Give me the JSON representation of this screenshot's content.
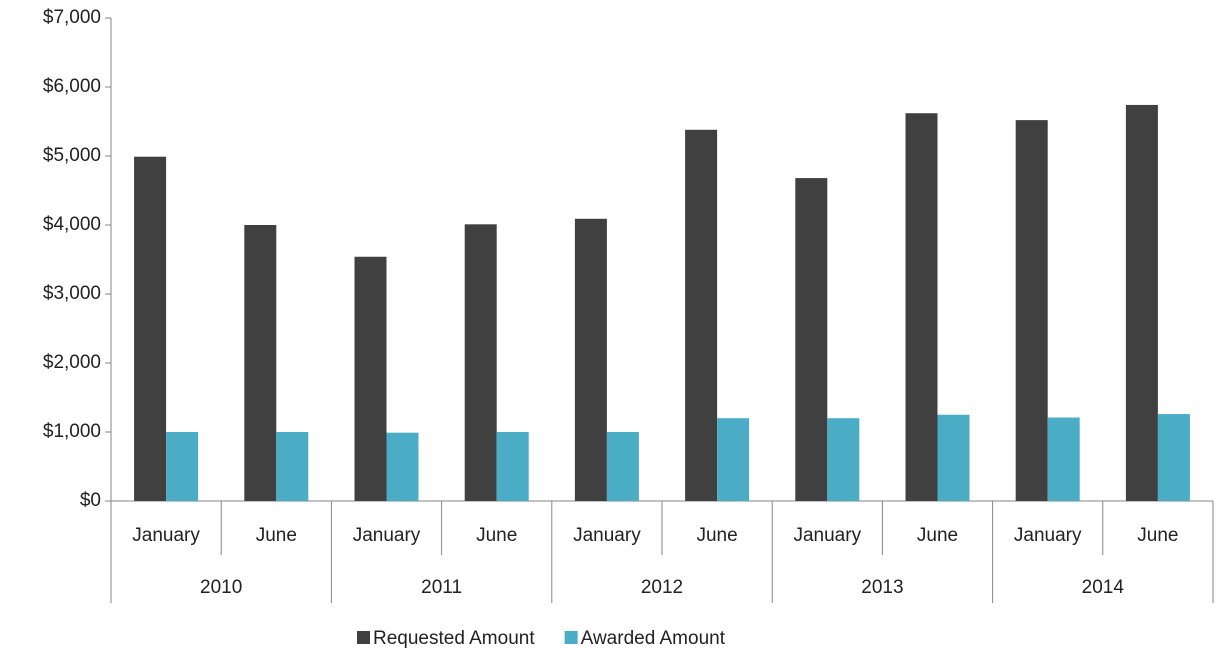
{
  "chart_data": {
    "type": "bar",
    "categories": [
      "January",
      "June",
      "January",
      "June",
      "January",
      "June",
      "January",
      "June",
      "January",
      "June"
    ],
    "groups": [
      "2010",
      "2011",
      "2012",
      "2013",
      "2014"
    ],
    "series": [
      {
        "name": "Requested Amount",
        "color": "#404040",
        "values": [
          4990,
          4000,
          3540,
          4010,
          4090,
          5380,
          4680,
          5620,
          5520,
          5740
        ]
      },
      {
        "name": "Awarded Amount",
        "color": "#4bacc6",
        "values": [
          1000,
          1000,
          990,
          1000,
          1000,
          1200,
          1200,
          1250,
          1210,
          1260
        ]
      }
    ],
    "ylim": [
      0,
      7000
    ],
    "yticks": [
      {
        "value": 0,
        "label": "$0"
      },
      {
        "value": 1000,
        "label": "$1,000"
      },
      {
        "value": 2000,
        "label": "$2,000"
      },
      {
        "value": 3000,
        "label": "$3,000"
      },
      {
        "value": 4000,
        "label": "$4,000"
      },
      {
        "value": 5000,
        "label": "$5,000"
      },
      {
        "value": 6000,
        "label": "$6,000"
      },
      {
        "value": 7000,
        "label": "$7,000"
      }
    ],
    "legend": "bottom"
  }
}
